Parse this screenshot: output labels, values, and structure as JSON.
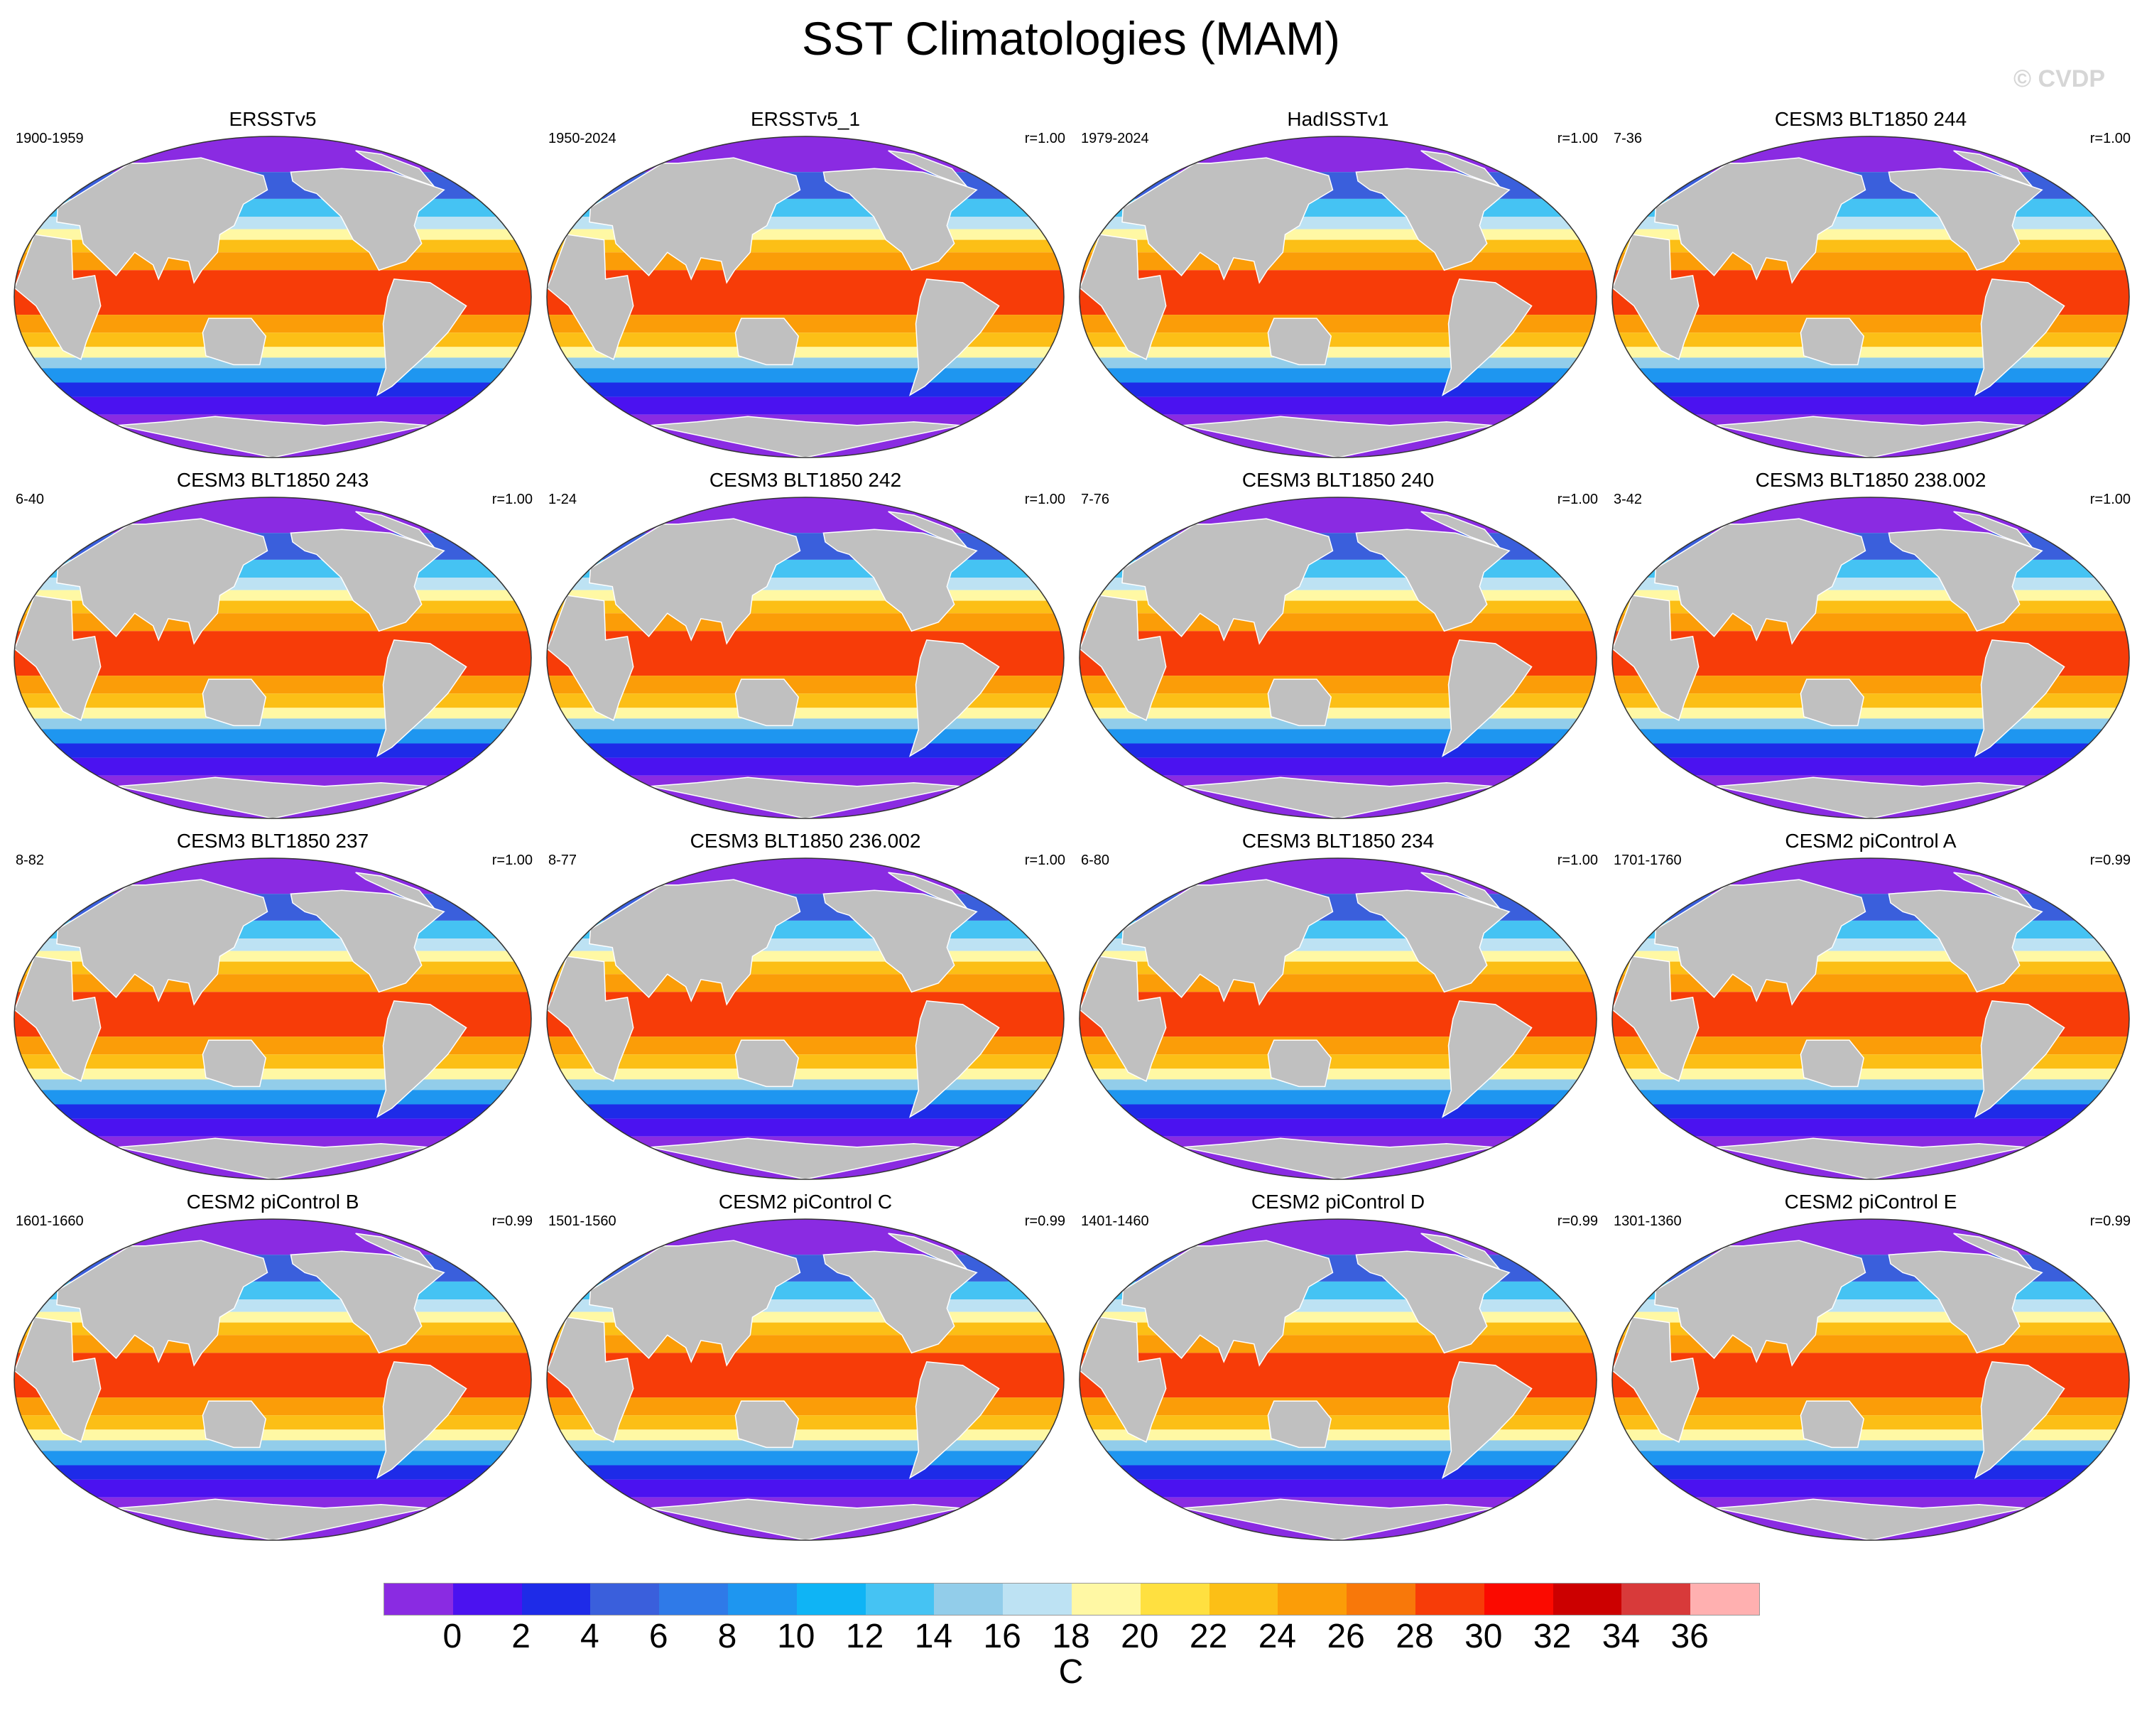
{
  "figure": {
    "title": "SST Climatologies (MAM)",
    "watermark": "© CVDP"
  },
  "panels": [
    {
      "title": "ERSSTv5",
      "period": "1900-1959",
      "r": ""
    },
    {
      "title": "ERSSTv5_1",
      "period": "1950-2024",
      "r": "r=1.00"
    },
    {
      "title": "HadISSTv1",
      "period": "1979-2024",
      "r": "r=1.00"
    },
    {
      "title": "CESM3 BLT1850 244",
      "period": "7-36",
      "r": "r=1.00"
    },
    {
      "title": "CESM3 BLT1850 243",
      "period": "6-40",
      "r": "r=1.00"
    },
    {
      "title": "CESM3 BLT1850 242",
      "period": "1-24",
      "r": "r=1.00"
    },
    {
      "title": "CESM3 BLT1850 240",
      "period": "7-76",
      "r": "r=1.00"
    },
    {
      "title": "CESM3 BLT1850 238.002",
      "period": "3-42",
      "r": "r=1.00"
    },
    {
      "title": "CESM3 BLT1850 237",
      "period": "8-82",
      "r": "r=1.00"
    },
    {
      "title": "CESM3 BLT1850 236.002",
      "period": "8-77",
      "r": "r=1.00"
    },
    {
      "title": "CESM3 BLT1850 234",
      "period": "6-80",
      "r": "r=1.00"
    },
    {
      "title": "CESM2 piControl A",
      "period": "1701-1760",
      "r": "r=0.99"
    },
    {
      "title": "CESM2 piControl B",
      "period": "1601-1660",
      "r": "r=0.99"
    },
    {
      "title": "CESM2 piControl C",
      "period": "1501-1560",
      "r": "r=0.99"
    },
    {
      "title": "CESM2 piControl D",
      "period": "1401-1460",
      "r": "r=0.99"
    },
    {
      "title": "CESM2 piControl E",
      "period": "1301-1360",
      "r": "r=0.99"
    }
  ],
  "colorbar": {
    "colors": [
      "#8a2be2",
      "#4b12f0",
      "#1e2be8",
      "#3a5fdc",
      "#2f7ae8",
      "#1e96f0",
      "#0fb4f5",
      "#45c3f3",
      "#92cdea",
      "#bde2f3",
      "#fff8a4",
      "#ffe040",
      "#fcbf16",
      "#fb9d08",
      "#f8780a",
      "#f73c08",
      "#fb0a00",
      "#cc0000",
      "#d83a3a",
      "#ffb0b0"
    ],
    "ticks": [
      "0",
      "2",
      "4",
      "6",
      "8",
      "10",
      "12",
      "14",
      "16",
      "18",
      "20",
      "22",
      "24",
      "26",
      "28",
      "30",
      "32",
      "34",
      "36"
    ],
    "unit": "C"
  },
  "map": {
    "land_color": "#c0c0c0",
    "ocean_bands": [
      {
        "lat": [
          70,
          90
        ],
        "color": "#8a2be2"
      },
      {
        "lat": [
          55,
          70
        ],
        "color": "#3a5fdc"
      },
      {
        "lat": [
          45,
          55
        ],
        "color": "#45c3f3"
      },
      {
        "lat": [
          38,
          45
        ],
        "color": "#bde2f3"
      },
      {
        "lat": [
          32,
          38
        ],
        "color": "#fff8a4"
      },
      {
        "lat": [
          25,
          32
        ],
        "color": "#fcbf16"
      },
      {
        "lat": [
          15,
          25
        ],
        "color": "#fb9d08"
      },
      {
        "lat": [
          -10,
          15
        ],
        "color": "#f73c08"
      },
      {
        "lat": [
          -20,
          -10
        ],
        "color": "#fb9d08"
      },
      {
        "lat": [
          -28,
          -20
        ],
        "color": "#fcbf16"
      },
      {
        "lat": [
          -34,
          -28
        ],
        "color": "#fff8a4"
      },
      {
        "lat": [
          -40,
          -34
        ],
        "color": "#92cdea"
      },
      {
        "lat": [
          -48,
          -40
        ],
        "color": "#1e96f0"
      },
      {
        "lat": [
          -56,
          -48
        ],
        "color": "#1e2be8"
      },
      {
        "lat": [
          -66,
          -56
        ],
        "color": "#4b12f0"
      },
      {
        "lat": [
          -90,
          -66
        ],
        "color": "#8a2be2"
      }
    ]
  }
}
